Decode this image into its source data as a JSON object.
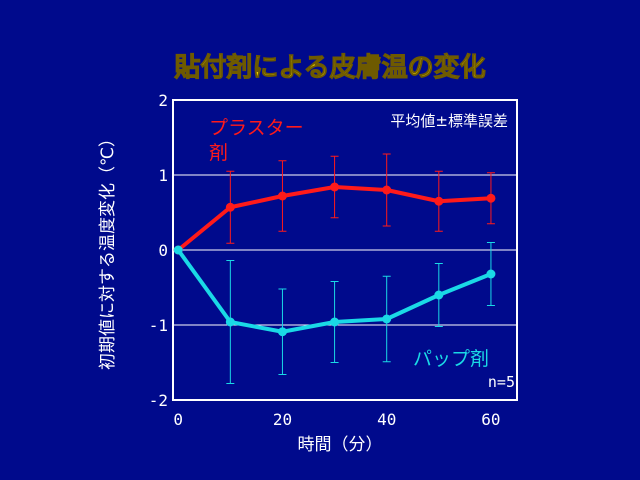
{
  "chart_data": {
    "type": "line",
    "title": "貼付剤による皮膚温の変化",
    "xlabel": "時間（分）",
    "ylabel": "初期値に対する温度変化（℃）",
    "x": [
      0,
      10,
      20,
      30,
      40,
      50,
      60
    ],
    "xticks": [
      0,
      20,
      40,
      60
    ],
    "yticks": [
      -2,
      -1,
      0,
      1,
      2
    ],
    "xlim": [
      -1,
      65
    ],
    "ylim": [
      -2,
      2
    ],
    "grid": "horizontal",
    "annotations": [
      "平均値±標準誤差",
      "n=5"
    ],
    "series": [
      {
        "name": "プラスター剤",
        "name_lines": [
          "プラスター",
          "剤"
        ],
        "color": "#ff1a1a",
        "values": [
          0,
          0.57,
          0.72,
          0.84,
          0.8,
          0.65,
          0.69
        ],
        "errors": [
          0,
          0.48,
          0.47,
          0.41,
          0.48,
          0.4,
          0.34
        ]
      },
      {
        "name": "パップ剤",
        "name_lines": [
          "パップ剤"
        ],
        "color": "#1ad9e6",
        "values": [
          0,
          -0.96,
          -1.09,
          -0.96,
          -0.92,
          -0.6,
          -0.32
        ],
        "errors": [
          0,
          0.82,
          0.57,
          0.54,
          0.57,
          0.42,
          0.42
        ]
      }
    ],
    "colors": {
      "title": "#ffe000",
      "title_outline": "#6e5a00",
      "background": "#000a8c",
      "axis": "#ffffff",
      "text": "#ffffff"
    }
  }
}
